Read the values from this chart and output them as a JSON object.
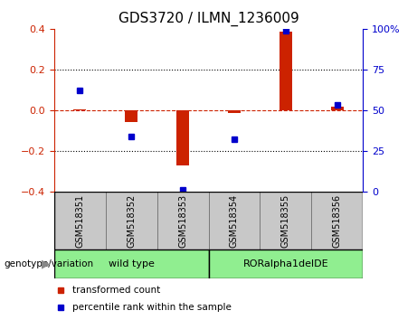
{
  "title": "GDS3720 / ILMN_1236009",
  "samples": [
    "GSM518351",
    "GSM518352",
    "GSM518353",
    "GSM518354",
    "GSM518355",
    "GSM518356"
  ],
  "red_values": [
    0.005,
    -0.055,
    -0.27,
    -0.012,
    0.385,
    0.018
  ],
  "blue_values": [
    0.1,
    -0.13,
    -0.39,
    -0.14,
    0.39,
    0.028
  ],
  "ylim_left": [
    -0.4,
    0.4
  ],
  "ylim_right": [
    0,
    100
  ],
  "yticks_left": [
    -0.4,
    -0.2,
    0.0,
    0.2,
    0.4
  ],
  "yticks_right": [
    0,
    25,
    50,
    75,
    100
  ],
  "group_label": "genotype/variation",
  "legend_red": "transformed count",
  "legend_blue": "percentile rank within the sample",
  "red_color": "#CC2200",
  "blue_color": "#0000CC",
  "green_color": "#90EE90",
  "grey_color": "#C8C8C8",
  "bar_width": 0.25,
  "marker_size": 5
}
